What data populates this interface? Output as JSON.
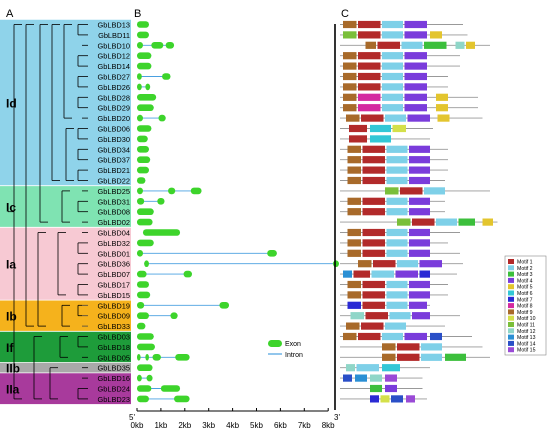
{
  "panels": [
    "A",
    "B",
    "C"
  ],
  "genes": [
    "GbLBD13",
    "GbLBD11",
    "GbLBD10",
    "GbLBD12",
    "GbLBD14",
    "GbLBD27",
    "GbLBD26",
    "GbLBD28",
    "GbLBD29",
    "GbLBD20",
    "GbLBD06",
    "GbLBD30",
    "GbLBD34",
    "GbLBD37",
    "GbLBD21",
    "GbLBD22",
    "GbLBD25",
    "GbLBD31",
    "GbLBD08",
    "GbLBD02",
    "GbLBD04",
    "GbLBD32",
    "GbLBD01",
    "GbLBD36",
    "GbLBD07",
    "GbLBD17",
    "GbLBD15",
    "GbLBD19",
    "GbLBD09",
    "GbLBD33",
    "GbLBD03",
    "GbLBD18",
    "GbLBD05",
    "GbLBD35",
    "GbLBD16",
    "GbLBD24",
    "GbLBD23"
  ],
  "groups": [
    {
      "label": "Id",
      "color": "#8fd3ea"
    },
    {
      "label": "Ic",
      "color": "#7fe3b2"
    },
    {
      "label": "Ia",
      "color": "#f7c9d3"
    },
    {
      "label": "Ib",
      "color": "#f5b21c"
    },
    {
      "label": "If",
      "color": "#1e9c3a"
    },
    {
      "label": "IIb",
      "color": "#a9a9a9"
    },
    {
      "label": "IIa",
      "color": "#a83a9c"
    }
  ],
  "exon_intron_legend": {
    "exon": "Exon",
    "intron": "Intron"
  },
  "axis": {
    "ticks": [
      "0kb",
      "1kb",
      "2kb",
      "3kb",
      "4kb",
      "5kb",
      "6kb",
      "7kb",
      "8kb"
    ],
    "five_prime": "5'",
    "three_prime": "3'"
  },
  "colors": {
    "exon": "#3dd42b",
    "intron": "#4aa0e0"
  },
  "motif_legend": [
    {
      "label": "Motif 1",
      "color": "#b22a2a"
    },
    {
      "label": "Motif 2",
      "color": "#7ed0e8"
    },
    {
      "label": "Motif 3",
      "color": "#3cbf3c"
    },
    {
      "label": "Motif 4",
      "color": "#7a3cdb"
    },
    {
      "label": "Motif 5",
      "color": "#e3c52e"
    },
    {
      "label": "Motif 6",
      "color": "#33c7d6"
    },
    {
      "label": "Motif 7",
      "color": "#2a2ad4"
    },
    {
      "label": "Motif 8",
      "color": "#d42aa0"
    },
    {
      "label": "Motif 9",
      "color": "#a86a2a"
    },
    {
      "label": "Motif 10",
      "color": "#d4e04a"
    },
    {
      "label": "Motif 11",
      "color": "#7abf3a"
    },
    {
      "label": "Motif 12",
      "color": "#8fd6c8"
    },
    {
      "label": "Motif 13",
      "color": "#2a8fd4"
    },
    {
      "label": "Motif 14",
      "color": "#2a4fc7"
    },
    {
      "label": "Motif 15",
      "color": "#9a4ad6"
    }
  ],
  "gene_structures": [
    {
      "exons": [
        [
          0,
          0.5
        ]
      ]
    },
    {
      "exons": [
        [
          0,
          0.5
        ]
      ]
    },
    {
      "exons": [
        [
          0,
          0.25
        ],
        [
          0.6,
          1.1
        ],
        [
          1.2,
          1.55
        ]
      ]
    },
    {
      "exons": [
        [
          0,
          0.6
        ]
      ]
    },
    {
      "exons": [
        [
          0,
          0.6
        ]
      ]
    },
    {
      "exons": [
        [
          0,
          0.2
        ],
        [
          1.05,
          1.4
        ]
      ]
    },
    {
      "exons": [
        [
          0,
          0.2
        ],
        [
          0.35,
          0.55
        ]
      ]
    },
    {
      "exons": [
        [
          0,
          0.8
        ]
      ]
    },
    {
      "exons": [
        [
          0,
          0.7
        ]
      ]
    },
    {
      "exons": [
        [
          0,
          0.25
        ],
        [
          0.9,
          1.2
        ]
      ]
    },
    {
      "exons": [
        [
          0,
          0.6
        ]
      ]
    },
    {
      "exons": [
        [
          0,
          0.45
        ]
      ]
    },
    {
      "exons": [
        [
          0,
          0.5
        ]
      ]
    },
    {
      "exons": [
        [
          0,
          0.55
        ]
      ]
    },
    {
      "exons": [
        [
          0,
          0.5
        ]
      ]
    },
    {
      "exons": [
        [
          0,
          0.35
        ]
      ]
    },
    {
      "exons": [
        [
          0,
          0.25
        ],
        [
          1.3,
          1.6
        ],
        [
          2.25,
          2.7
        ]
      ]
    },
    {
      "exons": [
        [
          0,
          0.3
        ],
        [
          0.85,
          1.15
        ]
      ]
    },
    {
      "exons": [
        [
          0,
          0.7
        ]
      ]
    },
    {
      "exons": [
        [
          0,
          0.65
        ]
      ]
    },
    {
      "exons": [
        [
          0.25,
          1.8
        ]
      ]
    },
    {
      "exons": [
        [
          0,
          0.7
        ]
      ]
    },
    {
      "exons": [
        [
          0,
          0.25
        ],
        [
          5.45,
          5.85
        ]
      ]
    },
    {
      "exons": [
        [
          0.3,
          0.5
        ],
        [
          8.2,
          8.45
        ]
      ]
    },
    {
      "exons": [
        [
          0,
          0.4
        ],
        [
          1.95,
          2.3
        ]
      ]
    },
    {
      "exons": [
        [
          0,
          0.5
        ]
      ]
    },
    {
      "exons": [
        [
          0,
          0.55
        ]
      ]
    },
    {
      "exons": [
        [
          0,
          0.3
        ],
        [
          3.45,
          3.85
        ]
      ]
    },
    {
      "exons": [
        [
          0,
          0.5
        ],
        [
          1.4,
          1.7
        ]
      ]
    },
    {
      "exons": [
        [
          0,
          0.35
        ]
      ]
    },
    {
      "exons": [
        [
          0,
          0.7
        ]
      ]
    },
    {
      "exons": [
        [
          0,
          0.75
        ]
      ]
    },
    {
      "exons": [
        [
          0,
          0.15
        ],
        [
          0.35,
          0.5
        ],
        [
          0.65,
          1.0
        ],
        [
          1.6,
          2.2
        ]
      ]
    },
    {
      "exons": [
        [
          0,
          0.65
        ]
      ]
    },
    {
      "exons": [
        [
          0,
          0.2
        ],
        [
          0.4,
          0.65
        ]
      ]
    },
    {
      "exons": [
        [
          0,
          0.6
        ],
        [
          1.0,
          1.8
        ]
      ]
    },
    {
      "exons": [
        [
          0,
          0.5
        ],
        [
          1.55,
          2.2
        ]
      ]
    }
  ],
  "motif_structures": [
    {
      "length": 0.82,
      "motifs": [
        [
          0.02,
          0.11,
          9
        ],
        [
          0.12,
          0.27,
          1
        ],
        [
          0.28,
          0.42,
          2
        ],
        [
          0.43,
          0.58,
          4
        ]
      ]
    },
    {
      "length": 0.85,
      "motifs": [
        [
          0.02,
          0.11,
          11
        ],
        [
          0.12,
          0.27,
          1
        ],
        [
          0.28,
          0.42,
          2
        ],
        [
          0.43,
          0.58,
          4
        ],
        [
          0.6,
          0.68,
          5
        ]
      ]
    },
    {
      "length": 1.0,
      "motifs": [
        [
          0.17,
          0.24,
          9
        ],
        [
          0.25,
          0.4,
          1
        ],
        [
          0.41,
          0.55,
          2
        ],
        [
          0.56,
          0.71,
          3
        ],
        [
          0.77,
          0.83,
          12
        ],
        [
          0.84,
          0.9,
          5
        ]
      ]
    },
    {
      "length": 0.8,
      "motifs": [
        [
          0.02,
          0.11,
          9
        ],
        [
          0.12,
          0.27,
          1
        ],
        [
          0.28,
          0.42,
          2
        ],
        [
          0.43,
          0.58,
          4
        ]
      ]
    },
    {
      "length": 0.8,
      "motifs": [
        [
          0.02,
          0.11,
          9
        ],
        [
          0.12,
          0.27,
          1
        ],
        [
          0.28,
          0.42,
          2
        ],
        [
          0.43,
          0.58,
          4
        ]
      ]
    },
    {
      "length": 0.72,
      "motifs": [
        [
          0.02,
          0.11,
          9
        ],
        [
          0.12,
          0.27,
          1
        ],
        [
          0.28,
          0.42,
          2
        ],
        [
          0.43,
          0.58,
          4
        ]
      ]
    },
    {
      "length": 0.72,
      "motifs": [
        [
          0.02,
          0.11,
          9
        ],
        [
          0.12,
          0.27,
          1
        ],
        [
          0.28,
          0.42,
          2
        ],
        [
          0.43,
          0.58,
          4
        ]
      ]
    },
    {
      "length": 0.92,
      "motifs": [
        [
          0.02,
          0.11,
          9
        ],
        [
          0.12,
          0.27,
          8
        ],
        [
          0.28,
          0.42,
          2
        ],
        [
          0.43,
          0.58,
          4
        ],
        [
          0.64,
          0.72,
          5
        ]
      ]
    },
    {
      "length": 0.92,
      "motifs": [
        [
          0.02,
          0.11,
          9
        ],
        [
          0.12,
          0.27,
          8
        ],
        [
          0.28,
          0.42,
          2
        ],
        [
          0.43,
          0.58,
          4
        ],
        [
          0.64,
          0.72,
          5
        ]
      ]
    },
    {
      "length": 0.95,
      "motifs": [
        [
          0.04,
          0.13,
          9
        ],
        [
          0.14,
          0.29,
          1
        ],
        [
          0.3,
          0.44,
          2
        ],
        [
          0.45,
          0.6,
          4
        ],
        [
          0.65,
          0.73,
          5
        ]
      ]
    },
    {
      "length": 0.62,
      "motifs": [
        [
          0.06,
          0.18,
          1
        ],
        [
          0.2,
          0.34,
          6
        ],
        [
          0.35,
          0.44,
          10
        ]
      ]
    },
    {
      "length": 0.6,
      "motifs": [
        [
          0.06,
          0.18,
          1
        ],
        [
          0.2,
          0.34,
          6
        ]
      ]
    },
    {
      "length": 0.72,
      "motifs": [
        [
          0.05,
          0.14,
          9
        ],
        [
          0.15,
          0.3,
          1
        ],
        [
          0.31,
          0.45,
          2
        ],
        [
          0.46,
          0.6,
          4
        ]
      ]
    },
    {
      "length": 0.72,
      "motifs": [
        [
          0.05,
          0.14,
          9
        ],
        [
          0.15,
          0.3,
          1
        ],
        [
          0.31,
          0.45,
          2
        ],
        [
          0.46,
          0.6,
          4
        ]
      ]
    },
    {
      "length": 0.72,
      "motifs": [
        [
          0.05,
          0.14,
          9
        ],
        [
          0.15,
          0.3,
          1
        ],
        [
          0.31,
          0.45,
          2
        ],
        [
          0.46,
          0.6,
          4
        ]
      ]
    },
    {
      "length": 0.7,
      "motifs": [
        [
          0.05,
          0.14,
          9
        ],
        [
          0.15,
          0.3,
          1
        ],
        [
          0.31,
          0.45,
          2
        ],
        [
          0.46,
          0.6,
          4
        ]
      ]
    },
    {
      "length": 1.0,
      "motifs": [
        [
          0.3,
          0.39,
          11
        ],
        [
          0.4,
          0.55,
          1
        ],
        [
          0.56,
          0.7,
          2
        ]
      ]
    },
    {
      "length": 0.7,
      "motifs": [
        [
          0.05,
          0.14,
          9
        ],
        [
          0.15,
          0.3,
          1
        ],
        [
          0.31,
          0.45,
          2
        ],
        [
          0.46,
          0.6,
          4
        ]
      ]
    },
    {
      "length": 0.7,
      "motifs": [
        [
          0.05,
          0.14,
          9
        ],
        [
          0.15,
          0.3,
          1
        ],
        [
          0.31,
          0.45,
          2
        ],
        [
          0.46,
          0.6,
          4
        ]
      ]
    },
    {
      "length": 1.05,
      "motifs": [
        [
          0.38,
          0.47,
          11
        ],
        [
          0.48,
          0.63,
          1
        ],
        [
          0.64,
          0.78,
          2
        ],
        [
          0.79,
          0.9,
          3
        ],
        [
          0.95,
          1.02,
          5
        ]
      ]
    },
    {
      "length": 0.8,
      "motifs": [
        [
          0.05,
          0.14,
          9
        ],
        [
          0.15,
          0.3,
          1
        ],
        [
          0.31,
          0.45,
          2
        ],
        [
          0.46,
          0.6,
          4
        ]
      ]
    },
    {
      "length": 0.72,
      "motifs": [
        [
          0.05,
          0.14,
          9
        ],
        [
          0.15,
          0.3,
          1
        ],
        [
          0.31,
          0.45,
          2
        ],
        [
          0.46,
          0.6,
          4
        ]
      ]
    },
    {
      "length": 0.8,
      "motifs": [
        [
          0.05,
          0.14,
          9
        ],
        [
          0.15,
          0.3,
          1
        ],
        [
          0.31,
          0.45,
          2
        ],
        [
          0.46,
          0.6,
          4
        ]
      ]
    },
    {
      "length": 0.82,
      "motifs": [
        [
          0.12,
          0.21,
          9
        ],
        [
          0.22,
          0.37,
          1
        ],
        [
          0.38,
          0.52,
          2
        ],
        [
          0.53,
          0.68,
          4
        ]
      ]
    },
    {
      "length": 0.78,
      "motifs": [
        [
          0.02,
          0.08,
          13
        ],
        [
          0.09,
          0.2,
          1
        ],
        [
          0.21,
          0.36,
          2
        ],
        [
          0.37,
          0.52,
          4
        ],
        [
          0.53,
          0.6,
          7
        ]
      ]
    },
    {
      "length": 0.72,
      "motifs": [
        [
          0.05,
          0.14,
          9
        ],
        [
          0.15,
          0.3,
          1
        ],
        [
          0.31,
          0.45,
          2
        ],
        [
          0.46,
          0.6,
          4
        ]
      ]
    },
    {
      "length": 0.72,
      "motifs": [
        [
          0.05,
          0.14,
          9
        ],
        [
          0.15,
          0.3,
          1
        ],
        [
          0.31,
          0.45,
          2
        ],
        [
          0.46,
          0.6,
          4
        ]
      ]
    },
    {
      "length": 0.6,
      "motifs": [
        [
          0.05,
          0.14,
          7
        ],
        [
          0.15,
          0.3,
          1
        ],
        [
          0.31,
          0.45,
          2
        ],
        [
          0.46,
          0.58,
          4
        ]
      ]
    },
    {
      "length": 0.8,
      "motifs": [
        [
          0.07,
          0.16,
          12
        ],
        [
          0.17,
          0.32,
          1
        ],
        [
          0.33,
          0.47,
          2
        ],
        [
          0.48,
          0.6,
          4
        ]
      ]
    },
    {
      "length": 0.7,
      "motifs": [
        [
          0.04,
          0.13,
          9
        ],
        [
          0.14,
          0.29,
          1
        ],
        [
          0.3,
          0.44,
          2
        ]
      ]
    },
    {
      "length": 0.88,
      "motifs": [
        [
          0.02,
          0.11,
          9
        ],
        [
          0.12,
          0.27,
          1
        ],
        [
          0.28,
          0.42,
          2
        ],
        [
          0.43,
          0.58,
          4
        ],
        [
          0.6,
          0.68,
          14
        ]
      ]
    },
    {
      "length": 0.95,
      "motifs": [
        [
          0.28,
          0.37,
          9
        ],
        [
          0.38,
          0.53,
          1
        ],
        [
          0.54,
          0.68,
          2
        ]
      ]
    },
    {
      "length": 1.0,
      "motifs": [
        [
          0.28,
          0.37,
          9
        ],
        [
          0.38,
          0.53,
          1
        ],
        [
          0.54,
          0.68,
          2
        ],
        [
          0.7,
          0.84,
          3
        ]
      ]
    },
    {
      "length": 0.6,
      "motifs": [
        [
          0.04,
          0.1,
          12
        ],
        [
          0.11,
          0.26,
          2
        ],
        [
          0.28,
          0.4,
          6
        ]
      ]
    },
    {
      "length": 0.55,
      "motifs": [
        [
          0.02,
          0.08,
          14
        ],
        [
          0.1,
          0.18,
          13
        ],
        [
          0.2,
          0.28,
          12
        ],
        [
          0.3,
          0.38,
          15
        ]
      ]
    },
    {
      "length": 0.55,
      "motifs": [
        [
          0.2,
          0.28,
          3
        ],
        [
          0.3,
          0.38,
          4
        ]
      ]
    },
    {
      "length": 0.58,
      "motifs": [
        [
          0.2,
          0.26,
          7
        ],
        [
          0.27,
          0.33,
          10
        ],
        [
          0.34,
          0.42,
          14
        ],
        [
          0.44,
          0.5,
          15
        ]
      ]
    }
  ]
}
